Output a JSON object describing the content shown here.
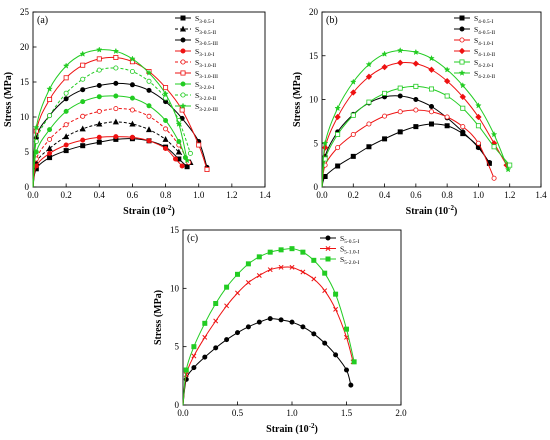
{
  "chart_data": [
    {
      "type": "line",
      "panel": "(a)",
      "xlabel": "Strain (10",
      "xlabel_sup": "-2",
      "xlabel_tail": ")",
      "ylabel": "Stress (MPa)",
      "xlim": [
        0,
        1.4
      ],
      "ylim": [
        0,
        25
      ],
      "xticks": [
        "0.0",
        "0.2",
        "0.4",
        "0.6",
        "0.8",
        "1.0",
        "1.2",
        "1.4"
      ],
      "yticks": [
        "0",
        "5",
        "10",
        "15",
        "20",
        "25"
      ],
      "legend_position": "top-right",
      "series": [
        {
          "name": "S",
          "sub": "3-0.5-I",
          "color": "#000000",
          "marker": "square",
          "filled": true,
          "dash": false,
          "x": [
            0,
            0.02,
            0.1,
            0.2,
            0.3,
            0.4,
            0.5,
            0.6,
            0.7,
            0.8,
            0.88,
            0.93
          ],
          "y": [
            0,
            2.6,
            4.2,
            5.2,
            5.9,
            6.4,
            6.8,
            6.9,
            6.6,
            5.7,
            4.0,
            2.9
          ]
        },
        {
          "name": "S",
          "sub": "3-0.5-II",
          "color": "#000000",
          "marker": "triangle",
          "filled": true,
          "dash": true,
          "x": [
            0,
            0.02,
            0.1,
            0.2,
            0.3,
            0.4,
            0.5,
            0.6,
            0.7,
            0.8,
            0.88,
            0.95
          ],
          "y": [
            0,
            3.5,
            5.5,
            7.2,
            8.3,
            9.0,
            9.3,
            9.0,
            8.2,
            6.8,
            5.0,
            3.5
          ]
        },
        {
          "name": "S",
          "sub": "3-0.5-III",
          "color": "#000000",
          "marker": "circle",
          "filled": true,
          "dash": false,
          "x": [
            0,
            0.02,
            0.1,
            0.2,
            0.3,
            0.4,
            0.5,
            0.6,
            0.7,
            0.8,
            0.9,
            1.0,
            1.05
          ],
          "y": [
            0,
            7.0,
            10.2,
            12.6,
            13.9,
            14.5,
            14.8,
            14.6,
            13.8,
            12.2,
            9.8,
            6.5,
            2.8
          ]
        },
        {
          "name": "S",
          "sub": "3-1.0-I",
          "color": "#ee1111",
          "marker": "circle",
          "filled": true,
          "dash": false,
          "x": [
            0,
            0.02,
            0.1,
            0.2,
            0.3,
            0.4,
            0.5,
            0.6,
            0.7,
            0.8,
            0.86,
            0.9
          ],
          "y": [
            0,
            3.0,
            4.8,
            6.0,
            6.7,
            7.1,
            7.2,
            7.1,
            6.6,
            5.5,
            4.0,
            3.0
          ]
        },
        {
          "name": "S",
          "sub": "3-1.0-II",
          "color": "#ee1111",
          "marker": "circle",
          "filled": false,
          "dash": true,
          "x": [
            0,
            0.02,
            0.1,
            0.2,
            0.3,
            0.4,
            0.5,
            0.6,
            0.7,
            0.8,
            0.88,
            0.94
          ],
          "y": [
            0,
            4.0,
            6.8,
            8.9,
            10.1,
            10.8,
            11.2,
            11.0,
            10.1,
            8.3,
            6.0,
            3.5
          ]
        },
        {
          "name": "S",
          "sub": "3-1.0-III",
          "color": "#ee1111",
          "marker": "square",
          "filled": false,
          "dash": false,
          "x": [
            0,
            0.02,
            0.1,
            0.2,
            0.3,
            0.4,
            0.5,
            0.6,
            0.7,
            0.8,
            0.9,
            1.0,
            1.05
          ],
          "y": [
            0,
            8.0,
            12.5,
            15.6,
            17.4,
            18.3,
            18.5,
            17.9,
            16.5,
            14.2,
            11.0,
            6.0,
            2.5
          ]
        },
        {
          "name": "S",
          "sub": "3-2.0-I",
          "color": "#22cc22",
          "marker": "circle",
          "filled": true,
          "dash": false,
          "x": [
            0,
            0.02,
            0.1,
            0.2,
            0.3,
            0.4,
            0.5,
            0.6,
            0.7,
            0.8,
            0.88,
            0.92
          ],
          "y": [
            0,
            5.0,
            8.2,
            10.8,
            12.2,
            12.9,
            13.0,
            12.7,
            11.6,
            9.5,
            6.5,
            4.2
          ]
        },
        {
          "name": "S",
          "sub": "3-2.0-II",
          "color": "#22cc22",
          "marker": "circle",
          "filled": false,
          "dash": true,
          "x": [
            0,
            0.02,
            0.1,
            0.2,
            0.3,
            0.4,
            0.5,
            0.6,
            0.7,
            0.8,
            0.88,
            0.95
          ],
          "y": [
            0,
            6.5,
            10.2,
            13.4,
            15.4,
            16.7,
            17.0,
            16.5,
            15.1,
            12.7,
            9.5,
            4.8
          ]
        },
        {
          "name": "S",
          "sub": "3-2.0-III",
          "color": "#22cc22",
          "marker": "star",
          "filled": true,
          "dash": false,
          "x": [
            0,
            0.02,
            0.1,
            0.2,
            0.3,
            0.4,
            0.5,
            0.6,
            0.7,
            0.8,
            0.88,
            0.93
          ],
          "y": [
            0,
            8.5,
            14.0,
            17.3,
            19.0,
            19.6,
            19.4,
            18.3,
            16.3,
            13.3,
            9.0,
            3.8
          ]
        }
      ]
    },
    {
      "type": "line",
      "panel": "(b)",
      "xlabel": "Strain (10",
      "xlabel_sup": "-2",
      "xlabel_tail": ")",
      "ylabel": "Stress (MPa)",
      "xlim": [
        0,
        1.4
      ],
      "ylim": [
        0,
        20
      ],
      "xticks": [
        "0.0",
        "0.2",
        "0.4",
        "0.6",
        "0.8",
        "1.0",
        "1.2",
        "1.4"
      ],
      "yticks": [
        "0",
        "5",
        "10",
        "15",
        "20"
      ],
      "legend_position": "top-right",
      "series": [
        {
          "name": "S",
          "sub": "4-0.5-I",
          "color": "#000000",
          "marker": "square",
          "filled": true,
          "dash": false,
          "x": [
            0,
            0.02,
            0.1,
            0.2,
            0.3,
            0.4,
            0.5,
            0.6,
            0.7,
            0.8,
            0.9,
            1.0,
            1.07
          ],
          "y": [
            0,
            1.2,
            2.4,
            3.5,
            4.6,
            5.5,
            6.3,
            6.9,
            7.2,
            7.0,
            6.1,
            4.6,
            2.7
          ]
        },
        {
          "name": "S",
          "sub": "4-0.5-II",
          "color": "#000000",
          "marker": "circle",
          "filled": true,
          "dash": false,
          "x": [
            0,
            0.02,
            0.1,
            0.2,
            0.3,
            0.4,
            0.5,
            0.6,
            0.7,
            0.8,
            0.9,
            1.0,
            1.07
          ],
          "y": [
            0,
            3.5,
            6.3,
            8.3,
            9.6,
            10.3,
            10.4,
            10.0,
            9.2,
            7.9,
            6.3,
            4.5,
            2.8
          ]
        },
        {
          "name": "S",
          "sub": "4-1.0-I",
          "color": "#ee1111",
          "marker": "circle",
          "filled": false,
          "dash": false,
          "x": [
            0,
            0.02,
            0.1,
            0.2,
            0.3,
            0.4,
            0.5,
            0.6,
            0.7,
            0.8,
            0.9,
            1.0,
            1.1
          ],
          "y": [
            0,
            2.5,
            4.5,
            6.0,
            7.2,
            8.1,
            8.6,
            8.8,
            8.6,
            8.0,
            6.9,
            5.0,
            1.0
          ]
        },
        {
          "name": "S",
          "sub": "4-1.0-II",
          "color": "#ee1111",
          "marker": "diamond",
          "filled": true,
          "dash": false,
          "x": [
            0,
            0.02,
            0.1,
            0.2,
            0.3,
            0.4,
            0.5,
            0.6,
            0.7,
            0.8,
            0.9,
            1.0,
            1.1,
            1.18
          ],
          "y": [
            0,
            4.5,
            8.0,
            10.8,
            12.6,
            13.7,
            14.2,
            14.1,
            13.4,
            12.1,
            10.3,
            8.0,
            5.0,
            2.5
          ]
        },
        {
          "name": "S",
          "sub": "4-2.0-I",
          "color": "#22cc22",
          "marker": "square",
          "filled": false,
          "dash": false,
          "x": [
            0,
            0.02,
            0.1,
            0.2,
            0.3,
            0.4,
            0.5,
            0.6,
            0.7,
            0.8,
            0.9,
            1.0,
            1.1,
            1.2
          ],
          "y": [
            0,
            3.2,
            6.0,
            8.2,
            9.7,
            10.7,
            11.3,
            11.5,
            11.2,
            10.4,
            9.0,
            7.0,
            4.6,
            2.5
          ]
        },
        {
          "name": "S",
          "sub": "4-2.0-II",
          "color": "#22cc22",
          "marker": "star",
          "filled": true,
          "dash": false,
          "x": [
            0,
            0.02,
            0.1,
            0.2,
            0.3,
            0.4,
            0.5,
            0.6,
            0.7,
            0.8,
            0.9,
            1.0,
            1.1,
            1.19
          ],
          "y": [
            0,
            5.0,
            9.0,
            12.0,
            14.0,
            15.2,
            15.6,
            15.4,
            14.7,
            13.4,
            11.6,
            9.3,
            6.0,
            2.0
          ]
        }
      ]
    },
    {
      "type": "line",
      "panel": "(c)",
      "xlabel": "Strain (10",
      "xlabel_sup": "-2",
      "xlabel_tail": ")",
      "ylabel": "Stress (MPa)",
      "xlim": [
        0,
        2.0
      ],
      "ylim": [
        0,
        15
      ],
      "xticks": [
        "0.0",
        "0.5",
        "1.0",
        "1.5",
        "2.0"
      ],
      "yticks": [
        "0",
        "5",
        "10",
        "15"
      ],
      "legend_position": "top-right",
      "series": [
        {
          "name": "S",
          "sub": "5-0.5-I",
          "color": "#000000",
          "marker": "circle",
          "filled": true,
          "dash": false,
          "x": [
            0,
            0.03,
            0.1,
            0.2,
            0.3,
            0.4,
            0.5,
            0.6,
            0.7,
            0.8,
            0.9,
            1.0,
            1.1,
            1.2,
            1.3,
            1.4,
            1.5,
            1.54
          ],
          "y": [
            0,
            2.2,
            3.2,
            4.1,
            4.9,
            5.6,
            6.2,
            6.7,
            7.1,
            7.4,
            7.3,
            7.1,
            6.7,
            6.1,
            5.3,
            4.3,
            3.0,
            1.7
          ]
        },
        {
          "name": "S",
          "sub": "5-1.0-I",
          "color": "#ee1111",
          "marker": "x",
          "filled": false,
          "dash": false,
          "x": [
            0,
            0.03,
            0.1,
            0.2,
            0.3,
            0.4,
            0.5,
            0.6,
            0.7,
            0.8,
            0.9,
            1.0,
            1.1,
            1.2,
            1.3,
            1.4,
            1.5,
            1.56
          ],
          "y": [
            0,
            2.6,
            4.2,
            5.8,
            7.2,
            8.5,
            9.6,
            10.5,
            11.1,
            11.6,
            11.8,
            11.8,
            11.4,
            10.8,
            9.8,
            8.2,
            5.8,
            3.7
          ]
        },
        {
          "name": "S",
          "sub": "5-2.0-I",
          "color": "#22cc22",
          "marker": "square",
          "filled": true,
          "dash": false,
          "x": [
            0,
            0.03,
            0.1,
            0.2,
            0.3,
            0.4,
            0.5,
            0.6,
            0.7,
            0.8,
            0.9,
            1.0,
            1.1,
            1.2,
            1.3,
            1.4,
            1.5,
            1.57
          ],
          "y": [
            0,
            3.0,
            5.0,
            7.0,
            8.7,
            10.1,
            11.2,
            12.1,
            12.7,
            13.1,
            13.3,
            13.4,
            13.1,
            12.4,
            11.3,
            9.5,
            6.5,
            3.7
          ]
        }
      ]
    }
  ]
}
